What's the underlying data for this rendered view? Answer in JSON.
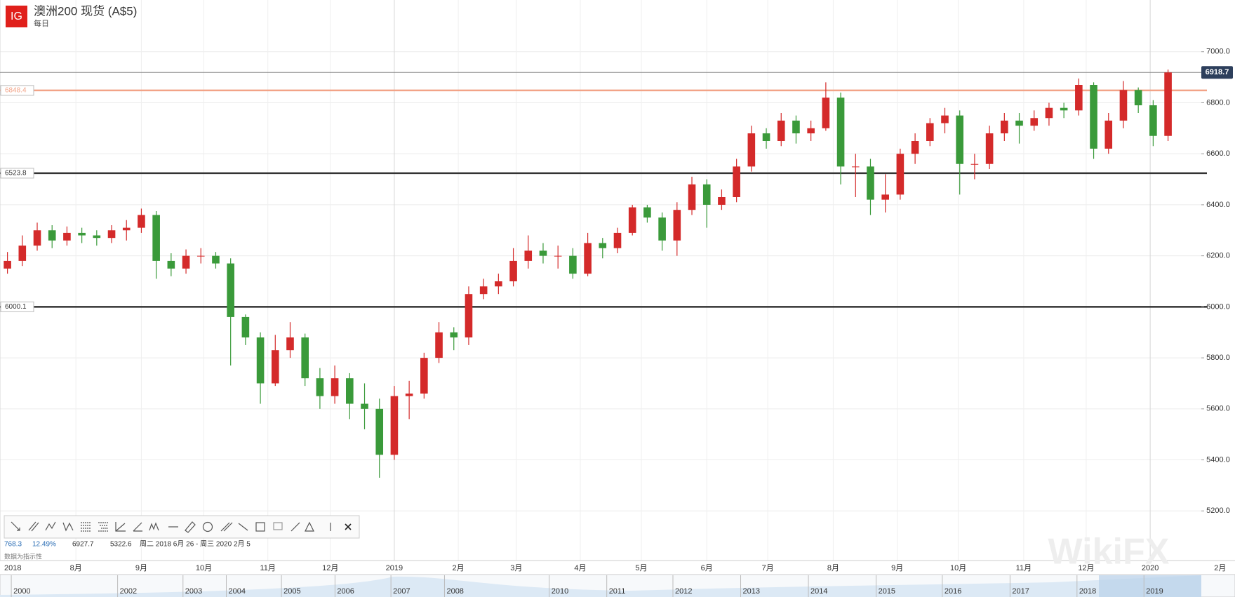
{
  "header": {
    "logo": "IG",
    "title": "澳洲200 现货 (A$5)",
    "interval": "每日"
  },
  "stats": {
    "change": "768.3",
    "change_pct": "12.49%",
    "high": "6927.7",
    "low": "5322.6",
    "range": "周二 2018 6月 26 - 周三 2020 2月 5",
    "note": "数据为指示性"
  },
  "watermark": "WikiFX",
  "navigator": {
    "years": [
      "2000",
      "2002",
      "2003",
      "2004",
      "2005",
      "2006",
      "2007",
      "2008",
      "2010",
      "2011",
      "2012",
      "2013",
      "2014",
      "2015",
      "2016",
      "2017",
      "2018",
      "2019"
    ]
  },
  "chart_data": {
    "type": "candlestick",
    "up_color": "#d42a2a",
    "down_color": "#3a9a3a",
    "grid": true,
    "open": [
      6150,
      6180,
      6240,
      6300,
      6260,
      6290,
      6280,
      6270,
      6300,
      6310,
      6360,
      6180,
      6150,
      6200,
      6200,
      6170,
      5960,
      5880,
      5700,
      5830,
      5880,
      5720,
      5650,
      5720,
      5620,
      5600,
      5420,
      5650,
      5660,
      5800,
      5900,
      5880,
      6050,
      6080,
      6100,
      6180,
      6220,
      6200,
      6200,
      6130,
      6250,
      6230,
      6290,
      6390,
      6350,
      6260,
      6380,
      6480,
      6400,
      6430,
      6550,
      6680,
      6650,
      6730,
      6680,
      6700,
      6820,
      6550,
      6550,
      6420,
      6440,
      6600,
      6650,
      6720,
      6750,
      6560,
      6560,
      6680,
      6730,
      6710,
      6740,
      6780,
      6770,
      6870,
      6620,
      6730,
      6850,
      6790,
      6670
    ],
    "high": [
      6215,
      6280,
      6330,
      6320,
      6315,
      6310,
      6300,
      6320,
      6340,
      6385,
      6375,
      6210,
      6225,
      6230,
      6215,
      6190,
      5970,
      5900,
      5890,
      5940,
      5895,
      5760,
      5770,
      5740,
      5700,
      5640,
      5690,
      5710,
      5820,
      5940,
      5920,
      6080,
      6110,
      6130,
      6230,
      6280,
      6250,
      6240,
      6230,
      6290,
      6270,
      6310,
      6400,
      6400,
      6370,
      6410,
      6510,
      6500,
      6460,
      6580,
      6710,
      6700,
      6760,
      6750,
      6730,
      6880,
      6840,
      6600,
      6580,
      6520,
      6620,
      6680,
      6740,
      6780,
      6770,
      6600,
      6710,
      6760,
      6760,
      6770,
      6800,
      6800,
      6895,
      6880,
      6760,
      6885,
      6860,
      6810,
      6930
    ],
    "low": [
      6130,
      6160,
      6220,
      6230,
      6240,
      6250,
      6240,
      6250,
      6260,
      6290,
      6110,
      6120,
      6130,
      6170,
      6150,
      5770,
      5850,
      5620,
      5690,
      5800,
      5690,
      5600,
      5620,
      5560,
      5520,
      5330,
      5400,
      5560,
      5640,
      5780,
      5830,
      5850,
      6030,
      6050,
      6080,
      6150,
      6170,
      6150,
      6110,
      6120,
      6190,
      6210,
      6280,
      6330,
      6220,
      6200,
      6360,
      6310,
      6380,
      6410,
      6530,
      6620,
      6630,
      6640,
      6650,
      6690,
      6480,
      6430,
      6360,
      6370,
      6420,
      6560,
      6630,
      6680,
      6440,
      6500,
      6540,
      6650,
      6640,
      6690,
      6710,
      6740,
      6750,
      6580,
      6600,
      6700,
      6760,
      6630,
      6650
    ],
    "close": [
      6180,
      6240,
      6300,
      6260,
      6290,
      6280,
      6270,
      6300,
      6310,
      6360,
      6180,
      6150,
      6200,
      6200,
      6170,
      5960,
      5880,
      5700,
      5830,
      5880,
      5720,
      5650,
      5720,
      5620,
      5600,
      5420,
      5650,
      5660,
      5800,
      5900,
      5880,
      6050,
      6080,
      6100,
      6180,
      6220,
      6200,
      6200,
      6130,
      6250,
      6230,
      6290,
      6390,
      6350,
      6260,
      6380,
      6480,
      6400,
      6430,
      6550,
      6680,
      6650,
      6730,
      6680,
      6700,
      6820,
      6550,
      6550,
      6420,
      6440,
      6600,
      6650,
      6720,
      6750,
      6560,
      6560,
      6680,
      6730,
      6710,
      6740,
      6780,
      6770,
      6870,
      6620,
      6730,
      6850,
      6790,
      6670,
      6918.7
    ],
    "xlim": [
      0,
      83
    ],
    "xticks": [
      {
        "value": 0,
        "label": "2018"
      },
      {
        "value": 5.1,
        "label": "8月"
      },
      {
        "value": 9.5,
        "label": "9月"
      },
      {
        "value": 13.7,
        "label": "10月"
      },
      {
        "value": 18,
        "label": "11月"
      },
      {
        "value": 22.2,
        "label": "12月"
      },
      {
        "value": 26.5,
        "label": "2019"
      },
      {
        "value": 30.8,
        "label": "2月"
      },
      {
        "value": 34.7,
        "label": "3月"
      },
      {
        "value": 39,
        "label": "4月"
      },
      {
        "value": 43.1,
        "label": "5月"
      },
      {
        "value": 47.5,
        "label": "6月"
      },
      {
        "value": 51.6,
        "label": "7月"
      },
      {
        "value": 56,
        "label": "8月"
      },
      {
        "value": 60.3,
        "label": "9月"
      },
      {
        "value": 64.4,
        "label": "10月"
      },
      {
        "value": 68.8,
        "label": "11月"
      },
      {
        "value": 73,
        "label": "12月"
      },
      {
        "value": 77.3,
        "label": "2020"
      },
      {
        "value": 82,
        "label": "2月"
      }
    ],
    "ylim": [
      5000,
      7200
    ],
    "yticks": [
      {
        "value": 5200,
        "label": "5200.0"
      },
      {
        "value": 5400,
        "label": "5400.0"
      },
      {
        "value": 5600,
        "label": "5600.0"
      },
      {
        "value": 5800,
        "label": "5800.0"
      },
      {
        "value": 6000,
        "label": "6000.0"
      },
      {
        "value": 6200,
        "label": "6200.0"
      },
      {
        "value": 6400,
        "label": "6400.0"
      },
      {
        "value": 6600,
        "label": "6600.0"
      },
      {
        "value": 6800,
        "label": "6800.0"
      },
      {
        "value": 7000,
        "label": "7000.0"
      }
    ],
    "levels": [
      6848.4,
      6523.8,
      6000.1
    ],
    "level_colors": [
      "#f2a387",
      "#333333",
      "#333333"
    ],
    "last_price": 6918.7
  }
}
